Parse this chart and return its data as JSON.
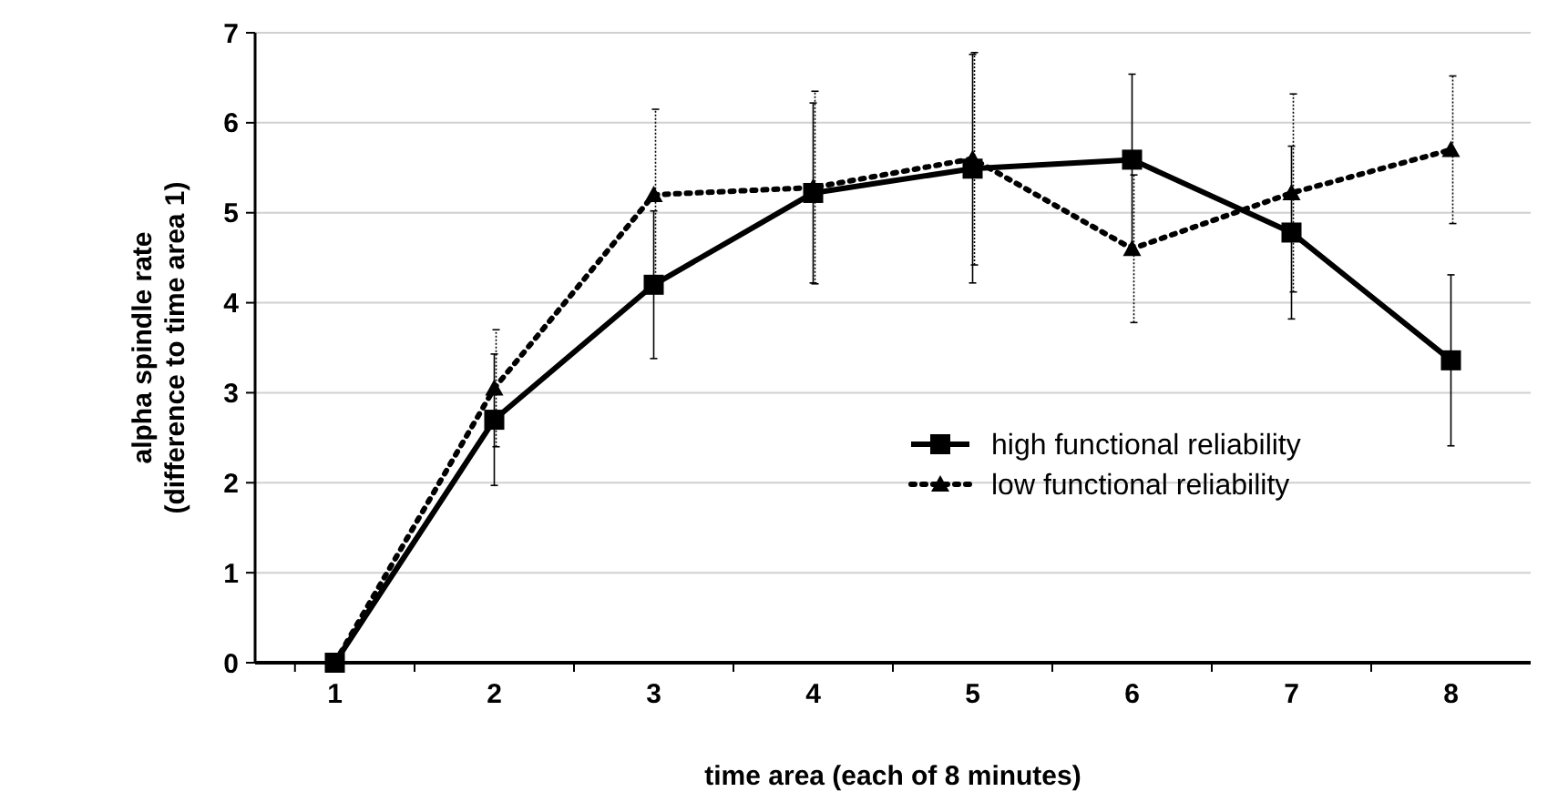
{
  "chart_data": {
    "type": "line",
    "xlabel": "time area (each of 8 minutes)",
    "ylabel": "alpha spindle rate\n(difference to time area 1)",
    "categories": [
      "1",
      "2",
      "3",
      "4",
      "5",
      "6",
      "7",
      "8"
    ],
    "ylim": [
      0,
      7
    ],
    "yticks": [
      0,
      1,
      2,
      3,
      4,
      5,
      6,
      7
    ],
    "grid": "y",
    "legend": "right",
    "series": [
      {
        "name": "high functional reliability",
        "color": "#000000",
        "line_style": "solid",
        "marker": "square",
        "values": [
          0,
          2.7,
          4.2,
          5.22,
          5.49,
          5.59,
          4.78,
          3.36
        ],
        "errors": [
          null,
          0.73,
          0.82,
          1.0,
          1.27,
          0.95,
          0.96,
          0.95
        ]
      },
      {
        "name": "low functional reliability",
        "color": "#000000",
        "line_style": "dotted",
        "marker": "triangle",
        "values": [
          0,
          3.05,
          5.2,
          5.28,
          5.6,
          4.6,
          5.22,
          5.7
        ],
        "errors": [
          null,
          0.65,
          0.95,
          1.07,
          1.18,
          0.82,
          1.1,
          0.82
        ]
      }
    ]
  }
}
